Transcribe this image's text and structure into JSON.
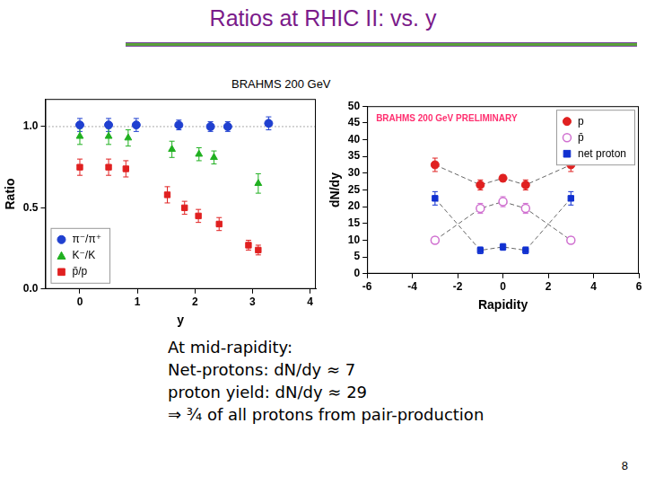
{
  "slide": {
    "title": "Ratios at RHIC II: vs. y",
    "subtitle": "BRAHMS 200 GeV",
    "text": [
      "At mid-rapidity:",
      "Net-protons: dN/dy ≈ 7",
      "proton yield: dN/dy ≈ 29",
      "⇒ ¾ of all protons from pair-production"
    ],
    "page": "8"
  },
  "chart_data": [
    {
      "type": "scatter",
      "x_label": "y",
      "y_label": "Ratio",
      "xlim": [
        -0.6,
        4.1
      ],
      "xticks": [
        0,
        1,
        2,
        3,
        4
      ],
      "ylim": [
        0,
        1.17
      ],
      "yticks": [
        {
          "value": 0,
          "label": "0.0"
        },
        {
          "value": 0.5,
          "label": "0.5"
        },
        {
          "value": 1,
          "label": "1.0"
        }
      ],
      "grid": false,
      "legend": "lower left",
      "reference_lines": [
        {
          "y": 1,
          "line_style": "dotted"
        }
      ],
      "series": [
        {
          "name": "π⁻/π⁺",
          "color": "#2040d0",
          "marker": "circle",
          "x": [
            0,
            0.5,
            0.98,
            1.72,
            2.27,
            2.57,
            3.28
          ],
          "values": [
            1.01,
            1.01,
            1.01,
            1.01,
            1.0,
            1.0,
            1.02
          ],
          "errors": [
            0.04,
            0.04,
            0.04,
            0.03,
            0.03,
            0.03,
            0.04
          ]
        },
        {
          "name": "K⁻/K",
          "color": "#20b020",
          "marker": "triangle",
          "x": [
            0,
            0.5,
            0.84,
            1.6,
            2.07,
            2.33,
            3.1
          ],
          "values": [
            0.94,
            0.94,
            0.93,
            0.86,
            0.83,
            0.81,
            0.65
          ],
          "errors": [
            0.05,
            0.05,
            0.05,
            0.05,
            0.04,
            0.04,
            0.06
          ]
        },
        {
          "name": "p̄/p",
          "color": "#e02020",
          "marker": "square",
          "x": [
            0,
            0.5,
            0.8,
            1.52,
            1.82,
            2.06,
            2.42,
            2.93,
            3.1
          ],
          "values": [
            0.75,
            0.75,
            0.74,
            0.58,
            0.5,
            0.45,
            0.4,
            0.27,
            0.24
          ],
          "errors": [
            0.05,
            0.05,
            0.05,
            0.05,
            0.04,
            0.04,
            0.04,
            0.03,
            0.03
          ]
        }
      ]
    },
    {
      "type": "scatter",
      "title": "BRAHMS 200 GeV PRELIMINARY",
      "x_label": "Rapidity",
      "y_label": "dN/dy",
      "xlim": [
        -6,
        6
      ],
      "xticks": [
        -6,
        -4,
        -2,
        0,
        2,
        4,
        6
      ],
      "ylim": [
        0,
        50
      ],
      "yticks": [
        0,
        5,
        10,
        15,
        20,
        25,
        30,
        35,
        40,
        45,
        50
      ],
      "grid": false,
      "legend": "upper right",
      "series": [
        {
          "name": "p",
          "color": "#e02020",
          "marker": "circle",
          "line_style": "dashed",
          "x": [
            -3,
            -1,
            0,
            1,
            3
          ],
          "values": [
            32.5,
            26.5,
            28.5,
            26.5,
            32.5
          ],
          "errors": [
            2,
            1.5,
            1,
            1.5,
            2
          ]
        },
        {
          "name": "p̄",
          "color": "#d070d0",
          "marker": "circle-open",
          "line_style": "dashed",
          "x": [
            -3,
            -1,
            0,
            1,
            3
          ],
          "values": [
            10,
            19.5,
            21.5,
            19.5,
            10
          ],
          "errors": [
            1,
            1.5,
            1.5,
            1.5,
            1
          ]
        },
        {
          "name": "net proton",
          "color": "#1030d0",
          "marker": "square",
          "line_style": "dashed",
          "x": [
            -3,
            -1,
            0,
            1,
            3
          ],
          "values": [
            22.5,
            7,
            8,
            7,
            22.5
          ],
          "errors": [
            2,
            1,
            1,
            1,
            2
          ]
        }
      ]
    }
  ]
}
